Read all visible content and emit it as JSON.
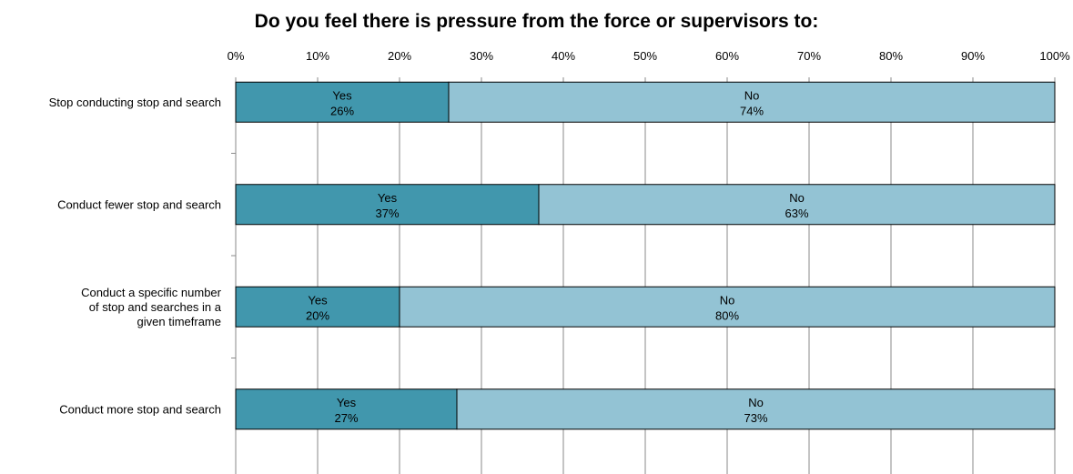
{
  "chart_data": {
    "type": "bar",
    "orientation": "horizontal",
    "stacked": true,
    "title": "Do you feel there is pressure from the force or supervisors to:",
    "x_ticks": [
      "0%",
      "10%",
      "20%",
      "30%",
      "40%",
      "50%",
      "60%",
      "70%",
      "80%",
      "90%",
      "100%"
    ],
    "xlim": [
      0,
      100
    ],
    "grid": true,
    "categories": [
      [
        "Stop conducting stop and search"
      ],
      [
        "Conduct fewer stop and search"
      ],
      [
        "Conduct a specific number",
        "of stop and searches in a",
        "given timeframe"
      ],
      [
        "Conduct more stop and search"
      ]
    ],
    "series": [
      {
        "name": "Yes",
        "values": [
          26,
          37,
          20,
          27
        ],
        "display": [
          "26%",
          "37%",
          "20%",
          "27%"
        ],
        "color": "#4197ad"
      },
      {
        "name": "No",
        "values": [
          74,
          63,
          80,
          73
        ],
        "display": [
          "74%",
          "63%",
          "80%",
          "73%"
        ],
        "color": "#93c3d4"
      }
    ]
  }
}
